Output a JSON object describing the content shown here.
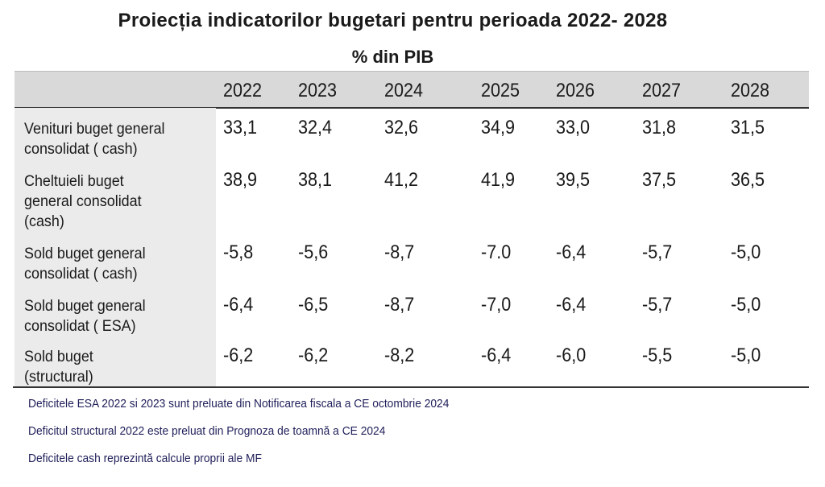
{
  "title": "Proiecția indicatorilor bugetari pentru perioada 2022- 2028",
  "subtitle": "% din PIB",
  "table": {
    "columns": [
      "2022",
      "2023",
      "2024",
      "2025",
      "2026",
      "2027",
      "2028"
    ],
    "rows": [
      {
        "label": "Venituri buget general consolidat ( cash)",
        "values": [
          "33,1",
          "32,4",
          "32,6",
          "34,9",
          "33,0",
          "31,8",
          "31,5"
        ]
      },
      {
        "label": "Cheltuieli  buget general consolidat (cash)",
        "values": [
          "38,9",
          "38,1",
          "41,2",
          "41,9",
          "39,5",
          "37,5",
          "36,5"
        ]
      },
      {
        "label": "Sold  buget general consolidat ( cash)",
        "values": [
          "-5,8",
          "-5,6",
          "-8,7",
          "-7.0",
          "-6,4",
          "-5,7",
          "-5,0"
        ]
      },
      {
        "label": "Sold  buget general consolidat ( ESA)",
        "values": [
          "-6,4",
          "-6,5",
          "-8,7",
          "-7,0",
          "-6,4",
          "-5,7",
          "-5,0"
        ]
      },
      {
        "label": "Sold  buget (structural)",
        "values": [
          "-6,2",
          "-6,2",
          "-8,2",
          "-6,4",
          "-6,0",
          "-5,5",
          "-5,0"
        ]
      }
    ]
  },
  "notes": [
    "Deficitele ESA 2022 si 2023 sunt preluate din Notificarea fiscala a CE  octombrie 2024",
    "Deficitul structural 2022 este preluat din  Prognoza de toamnă a CE 2024",
    "Deficitele cash reprezintă calcule proprii ale MF"
  ],
  "colors": {
    "header_bg": "#d9d9d9",
    "label_col_bg": "#ebebeb",
    "notes_text": "#1f1f5a"
  }
}
